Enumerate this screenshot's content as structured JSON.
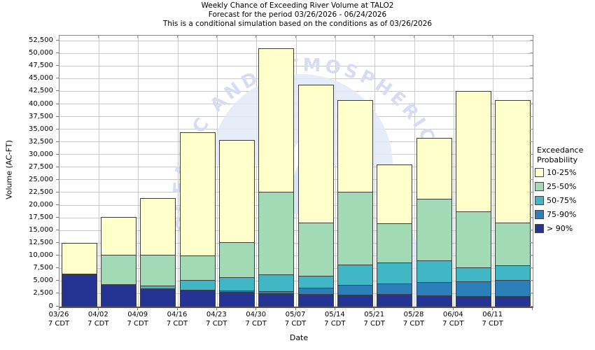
{
  "title": {
    "line1": "Weekly Chance of Exceeding River Volume at TALO2",
    "line2": "Forecast for the period 03/26/2026 - 06/24/2026",
    "line3": "This is a conditional simulation based on the conditions as of 03/26/2026"
  },
  "axes": {
    "y_label": "Volume (AC-FT)",
    "x_label": "Date",
    "y_tick_labels": [
      "0",
      "2,500",
      "5,000",
      "7,500",
      "10,000",
      "12,500",
      "15,000",
      "17,500",
      "20,000",
      "22,500",
      "25,000",
      "27,500",
      "30,000",
      "32,500",
      "35,000",
      "37,500",
      "40,000",
      "42,500",
      "45,000",
      "47,500",
      "50,000",
      "52,500"
    ],
    "x_tick_sub_label": "7 CDT"
  },
  "legend": {
    "title_line1": "Exceedance",
    "title_line2": "Probability",
    "entries": [
      {
        "label": "10-25%",
        "color": "#FFFFCC"
      },
      {
        "label": "25-50%",
        "color": "#A1DAB4"
      },
      {
        "label": "50-75%",
        "color": "#41B6C4"
      },
      {
        "label": "75-90%",
        "color": "#2C7FB8"
      },
      {
        "label": "> 90%",
        "color": "#253494"
      }
    ]
  },
  "watermark": {
    "ring_text": "OCEANIC AND ATMOSPHERIC ADMINISTRATION",
    "text_color": "#d7dcf2",
    "shape_color": "#e3e9f8"
  },
  "chart_data": {
    "type": "bar",
    "stacked": true,
    "title": "Weekly Chance of Exceeding River Volume at TALO2",
    "xlabel": "Date",
    "ylabel": "Volume (AC-FT)",
    "ylim": [
      0,
      52500
    ],
    "y_tick_step": 2500,
    "grid": true,
    "legend_position": "right",
    "categories": [
      "03/26",
      "04/02",
      "04/09",
      "04/16",
      "04/23",
      "04/30",
      "05/07",
      "05/14",
      "05/21",
      "05/28",
      "06/04",
      "06/11"
    ],
    "category_time": "7 CDT",
    "series": [
      {
        "name": "> 90%",
        "color": "#253494",
        "values": [
          6400,
          4300,
          3400,
          3200,
          2800,
          2500,
          2400,
          2200,
          2300,
          2100,
          2000,
          1900
        ]
      },
      {
        "name": "75-90%",
        "color": "#2C7FB8",
        "values": [
          0,
          0,
          0,
          0,
          400,
          500,
          1400,
          2100,
          2300,
          2800,
          3000,
          3400
        ]
      },
      {
        "name": "50-75%",
        "color": "#41B6C4",
        "values": [
          0,
          0,
          800,
          2000,
          2800,
          3500,
          2500,
          4100,
          4200,
          4400,
          2900,
          3000
        ]
      },
      {
        "name": "25-50%",
        "color": "#A1DAB4",
        "values": [
          0,
          6000,
          6200,
          5100,
          7000,
          16500,
          10600,
          14600,
          8000,
          12300,
          11200,
          8600
        ]
      },
      {
        "name": "10-25%",
        "color": "#FFFFCC",
        "values": [
          6200,
          7500,
          11400,
          24500,
          20400,
          28500,
          27400,
          18200,
          11700,
          12200,
          23900,
          24400
        ]
      }
    ],
    "stack_totals": [
      12600,
      17800,
      21800,
      34800,
      33400,
      51500,
      44300,
      41200,
      28500,
      33800,
      43000,
      41300
    ]
  }
}
